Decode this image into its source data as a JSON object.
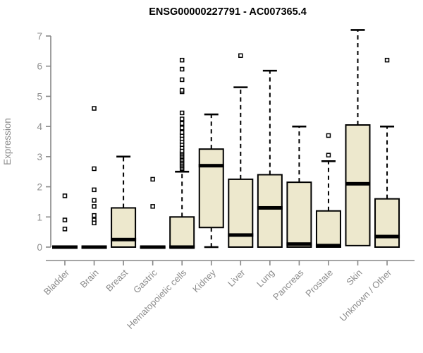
{
  "chart_data": {
    "type": "boxplot",
    "title": "ENSG00000227791 - AC007365.4",
    "xlabel": "",
    "ylabel": "Expression",
    "ylim": [
      0,
      7
    ],
    "yticks": [
      0,
      1,
      2,
      3,
      4,
      5,
      6,
      7
    ],
    "grid": false,
    "legend": "none",
    "categories": [
      "Bladder",
      "Brain",
      "Breast",
      "Gastric",
      "Hematopoietic cells",
      "Kidney",
      "Liver",
      "Lung",
      "Pancreas",
      "Prostate",
      "Skin",
      "Unknown / Other"
    ],
    "boxes": [
      {
        "category": "Bladder",
        "low": 0,
        "q1": 0,
        "median": 0,
        "q3": 0,
        "high": 0,
        "outliers": [
          1.7,
          0.9,
          0.6
        ]
      },
      {
        "category": "Brain",
        "low": 0,
        "q1": 0,
        "median": 0,
        "q3": 0,
        "high": 0,
        "outliers": [
          4.6,
          2.6,
          1.9,
          1.55,
          1.35,
          1.05,
          0.9,
          0.8
        ]
      },
      {
        "category": "Breast",
        "low": 0,
        "q1": 0,
        "median": 0.25,
        "q3": 1.3,
        "high": 3.0,
        "outliers": []
      },
      {
        "category": "Gastric",
        "low": 0,
        "q1": 0,
        "median": 0,
        "q3": 0,
        "high": 0,
        "outliers": [
          2.25,
          1.35
        ]
      },
      {
        "category": "Hematopoietic cells",
        "low": 0,
        "q1": 0,
        "median": 0,
        "q3": 1.0,
        "high": 2.5,
        "outliers": [
          2.6,
          2.65,
          2.7,
          2.75,
          2.8,
          2.85,
          2.9,
          2.95,
          3.0,
          3.05,
          3.1,
          3.15,
          3.2,
          3.3,
          3.4,
          3.5,
          3.6,
          3.7,
          3.8,
          3.95,
          4.1,
          4.25,
          4.45,
          5.15,
          5.2,
          5.55,
          5.9,
          6.2
        ]
      },
      {
        "category": "Kidney",
        "low": 0,
        "q1": 0.65,
        "median": 2.7,
        "q3": 3.25,
        "high": 4.4,
        "outliers": []
      },
      {
        "category": "Liver",
        "low": 0,
        "q1": 0,
        "median": 0.4,
        "q3": 2.25,
        "high": 5.3,
        "outliers": [
          6.35
        ]
      },
      {
        "category": "Lung",
        "low": 0,
        "q1": 0,
        "median": 1.3,
        "q3": 2.4,
        "high": 5.85,
        "outliers": []
      },
      {
        "category": "Pancreas",
        "low": 0,
        "q1": 0,
        "median": 0.1,
        "q3": 2.15,
        "high": 4.0,
        "outliers": []
      },
      {
        "category": "Prostate",
        "low": 0,
        "q1": 0,
        "median": 0.05,
        "q3": 1.2,
        "high": 2.85,
        "outliers": [
          3.7,
          3.05
        ]
      },
      {
        "category": "Skin",
        "low": 0.05,
        "q1": 0.05,
        "median": 2.1,
        "q3": 4.05,
        "high": 7.2,
        "outliers": []
      },
      {
        "category": "Unknown / Other",
        "low": 0,
        "q1": 0,
        "median": 0.35,
        "q3": 1.6,
        "high": 4.0,
        "outliers": [
          6.2
        ]
      }
    ]
  },
  "colors": {
    "background": "#ffffff",
    "box_fill": "#ede8cd",
    "box_stroke": "#000000",
    "median": "#000000",
    "whisker": "#000000",
    "outlier_fill": "#ffffff",
    "outlier_stroke": "#000000",
    "axis_line": "#878787",
    "tick_text": "#8c8c8c",
    "title_text": "#000000"
  }
}
